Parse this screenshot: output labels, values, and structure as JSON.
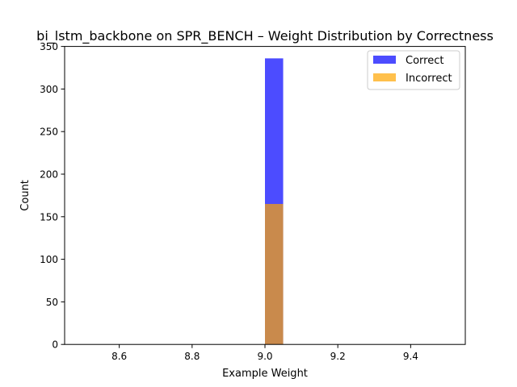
{
  "chart_data": {
    "type": "bar",
    "title": "bi_lstm_backbone on SPR_BENCH – Weight Distribution by Correctness",
    "xlabel": "Example Weight",
    "ylabel": "Count",
    "xlim": [
      8.45,
      9.55
    ],
    "ylim": [
      0,
      350
    ],
    "xticks": [
      8.6,
      8.8,
      9.0,
      9.2,
      9.4
    ],
    "xtick_labels": [
      "8.6",
      "8.8",
      "9.0",
      "9.2",
      "9.4"
    ],
    "yticks": [
      0,
      50,
      100,
      150,
      200,
      250,
      300,
      350
    ],
    "ytick_labels": [
      "0",
      "50",
      "100",
      "150",
      "200",
      "250",
      "300",
      "350"
    ],
    "grid": false,
    "legend_position": "top-right",
    "overlay": true,
    "series": [
      {
        "name": "Correct",
        "color": "#0000ff",
        "opacity": 0.7,
        "bins": [
          {
            "x0": 9.0,
            "x1": 9.05,
            "count": 336
          }
        ]
      },
      {
        "name": "Incorrect",
        "color": "#ffa500",
        "opacity": 0.7,
        "bins": [
          {
            "x0": 9.0,
            "x1": 9.05,
            "count": 165
          }
        ]
      }
    ]
  }
}
